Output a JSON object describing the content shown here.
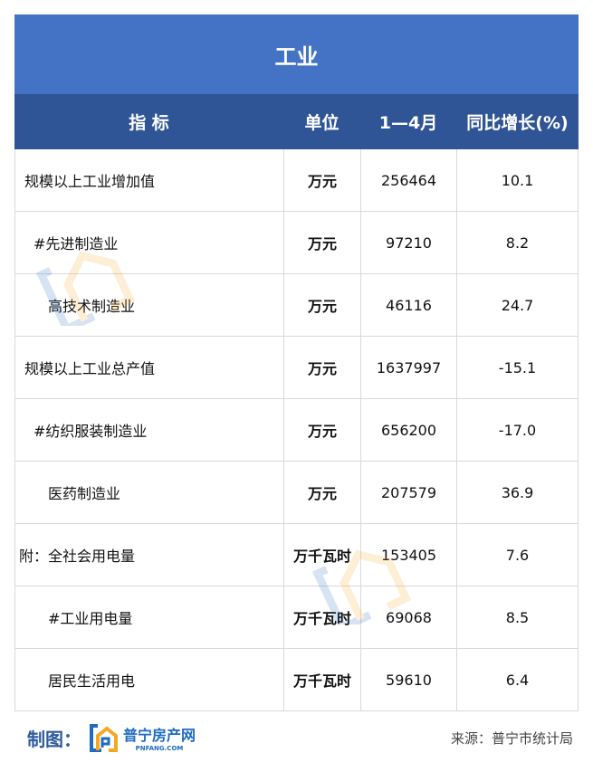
{
  "table": {
    "title": "工业",
    "headers": [
      "指 标",
      "单位",
      "1—4月",
      "同比增长(%)"
    ],
    "rows": [
      {
        "name": "规模以上工业增加值",
        "unit": "万元",
        "value": "256464",
        "growth": "10.1"
      },
      {
        "name": "#先进制造业",
        "unit": "万元",
        "value": "97210",
        "growth": "8.2"
      },
      {
        "name": "高技术制造业",
        "unit": "万元",
        "value": "46116",
        "growth": "24.7"
      },
      {
        "name": "规模以上工业总产值",
        "unit": "万元",
        "value": "1637997",
        "growth": "-15.1"
      },
      {
        "name": "#纺织服装制造业",
        "unit": "万元",
        "value": "656200",
        "growth": "-17.0"
      },
      {
        "name": "医药制造业",
        "unit": "万元",
        "value": "207579",
        "growth": "36.9"
      },
      {
        "name": "附：全社会用电量",
        "unit": "万千瓦时",
        "value": "153405",
        "growth": "7.6"
      },
      {
        "name": "#工业用电量",
        "unit": "万千瓦时",
        "value": "69068",
        "growth": "8.5"
      },
      {
        "name": "居民生活用电",
        "unit": "万千瓦时",
        "value": "59610",
        "growth": "6.4"
      }
    ]
  },
  "footer": {
    "made_by": "制图：",
    "logo_cn": "普宁房产网",
    "logo_en": "PNFANG.COM",
    "source": "来源：普宁市统计局"
  },
  "colors": {
    "title_bg": "#4472c4",
    "header_bg": "#2f5597",
    "logo_blue": "#1e6bc0",
    "logo_orange": "#f5a623"
  }
}
